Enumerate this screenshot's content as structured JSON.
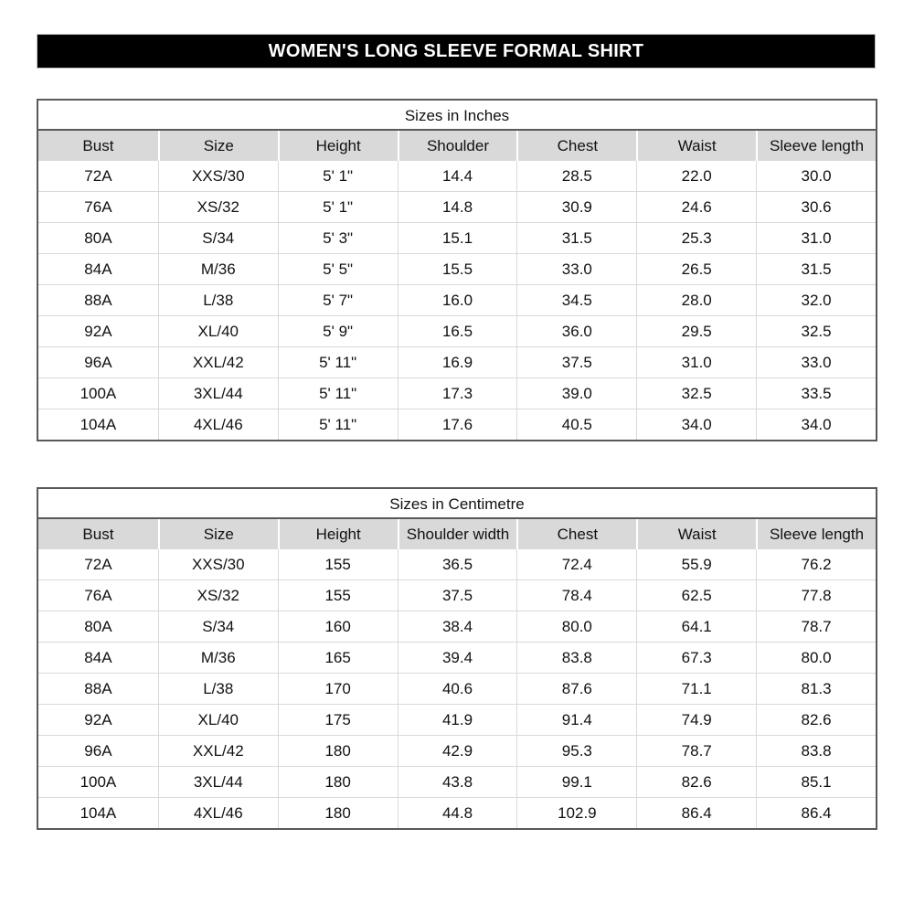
{
  "banner": {
    "title": "WOMEN'S LONG SLEEVE FORMAL SHIRT"
  },
  "colors": {
    "banner_bg": "#000000",
    "banner_text": "#ffffff",
    "header_row_bg": "#d9d9d9",
    "table_border": "#595959",
    "grid_line": "#d9d9d9"
  },
  "tables": [
    {
      "title": "Sizes in Inches",
      "columns": [
        "Bust",
        "Size",
        "Height",
        "Shoulder",
        "Chest",
        "Waist",
        "Sleeve length"
      ],
      "rows": [
        [
          "72A",
          "XXS/30",
          "5' 1\"",
          "14.4",
          "28.5",
          "22.0",
          "30.0"
        ],
        [
          "76A",
          "XS/32",
          "5' 1\"",
          "14.8",
          "30.9",
          "24.6",
          "30.6"
        ],
        [
          "80A",
          "S/34",
          "5' 3\"",
          "15.1",
          "31.5",
          "25.3",
          "31.0"
        ],
        [
          "84A",
          "M/36",
          "5' 5\"",
          "15.5",
          "33.0",
          "26.5",
          "31.5"
        ],
        [
          "88A",
          "L/38",
          "5' 7\"",
          "16.0",
          "34.5",
          "28.0",
          "32.0"
        ],
        [
          "92A",
          "XL/40",
          "5' 9\"",
          "16.5",
          "36.0",
          "29.5",
          "32.5"
        ],
        [
          "96A",
          "XXL/42",
          "5' 11\"",
          "16.9",
          "37.5",
          "31.0",
          "33.0"
        ],
        [
          "100A",
          "3XL/44",
          "5' 11\"",
          "17.3",
          "39.0",
          "32.5",
          "33.5"
        ],
        [
          "104A",
          "4XL/46",
          "5' 11\"",
          "17.6",
          "40.5",
          "34.0",
          "34.0"
        ]
      ]
    },
    {
      "title": "Sizes in Centimetre",
      "columns": [
        "Bust",
        "Size",
        "Height",
        "Shoulder width",
        "Chest",
        "Waist",
        "Sleeve length"
      ],
      "rows": [
        [
          "72A",
          "XXS/30",
          "155",
          "36.5",
          "72.4",
          "55.9",
          "76.2"
        ],
        [
          "76A",
          "XS/32",
          "155",
          "37.5",
          "78.4",
          "62.5",
          "77.8"
        ],
        [
          "80A",
          "S/34",
          "160",
          "38.4",
          "80.0",
          "64.1",
          "78.7"
        ],
        [
          "84A",
          "M/36",
          "165",
          "39.4",
          "83.8",
          "67.3",
          "80.0"
        ],
        [
          "88A",
          "L/38",
          "170",
          "40.6",
          "87.6",
          "71.1",
          "81.3"
        ],
        [
          "92A",
          "XL/40",
          "175",
          "41.9",
          "91.4",
          "74.9",
          "82.6"
        ],
        [
          "96A",
          "XXL/42",
          "180",
          "42.9",
          "95.3",
          "78.7",
          "83.8"
        ],
        [
          "100A",
          "3XL/44",
          "180",
          "43.8",
          "99.1",
          "82.6",
          "85.1"
        ],
        [
          "104A",
          "4XL/46",
          "180",
          "44.8",
          "102.9",
          "86.4",
          "86.4"
        ]
      ]
    }
  ]
}
